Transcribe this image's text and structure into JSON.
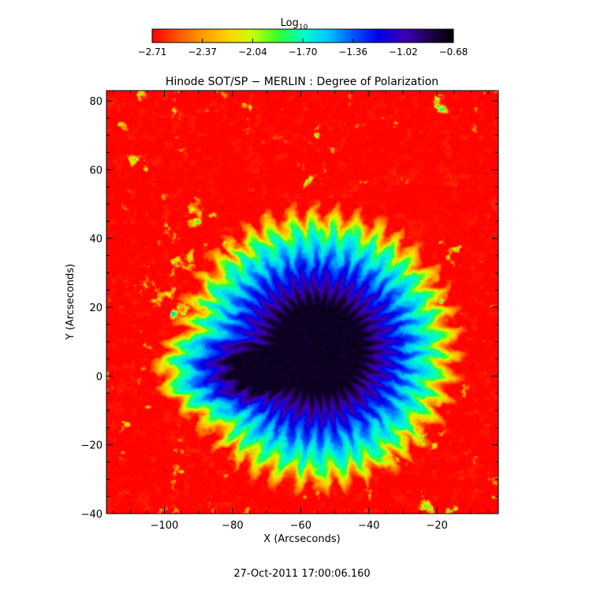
{
  "colorbar": {
    "label_main": "Log",
    "label_sub": "10",
    "ticks": [
      "−2.71",
      "−2.37",
      "−2.04",
      "−1.70",
      "−1.36",
      "−1.02",
      "−0.68"
    ],
    "range": [
      -2.71,
      -0.68
    ],
    "colormap": [
      "#ff0000",
      "#ff5000",
      "#ff9600",
      "#ffd200",
      "#c8ff00",
      "#32ff32",
      "#00ffc8",
      "#00c8ff",
      "#0050ff",
      "#0000e6",
      "#3c00b4",
      "#1e0050",
      "#000000"
    ]
  },
  "chart_data": {
    "type": "heatmap",
    "title": "Hinode SOT/SP − MERLIN : Degree of Polarization",
    "xlabel": "X (Arcseconds)",
    "ylabel": "Y (Arcseconds)",
    "xlim": [
      -117,
      -2
    ],
    "ylim": [
      -40,
      83
    ],
    "xticks": [
      -100,
      -80,
      -60,
      -40,
      -20
    ],
    "yticks": [
      -40,
      -20,
      0,
      20,
      40,
      60,
      80
    ],
    "xtick_labels": [
      "−100",
      "−80",
      "−60",
      "−40",
      "−20"
    ],
    "ytick_labels": [
      "−40",
      "−20",
      "0",
      "20",
      "40",
      "60",
      "80"
    ],
    "features": {
      "umbra_center": [
        -55,
        8
      ],
      "umbra_radius_arcsec": 22,
      "background_level": -2.71,
      "peak_level": -0.68
    }
  },
  "footer": {
    "timestamp": "27-Oct-2011 17:00:06.160"
  }
}
